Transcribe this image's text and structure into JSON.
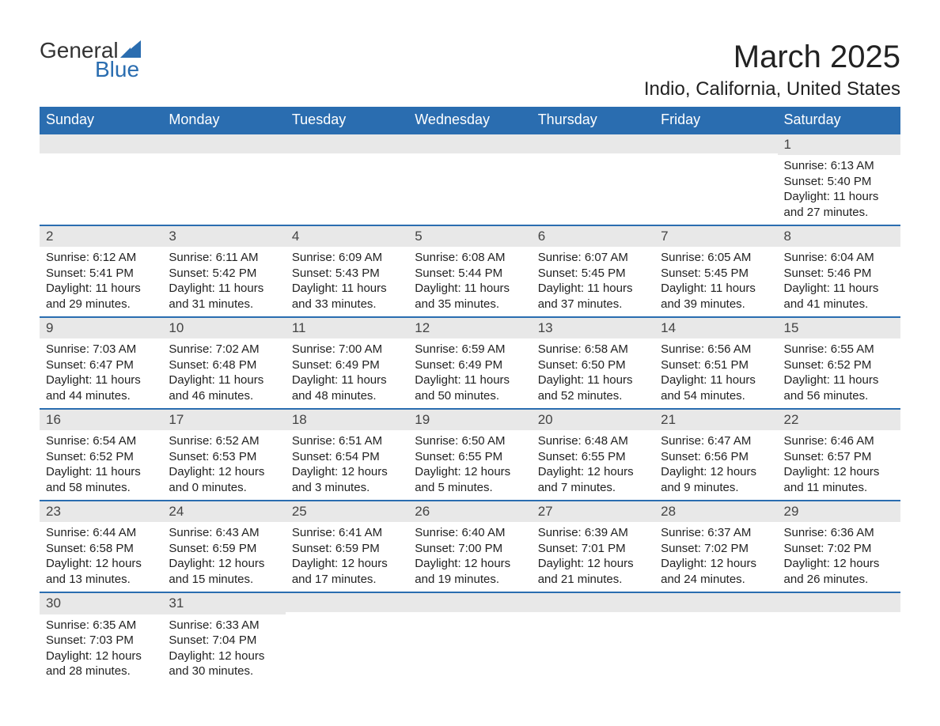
{
  "logo": {
    "word1": "General",
    "word2": "Blue",
    "sail_color": "#2a6db0",
    "text_dark": "#333333"
  },
  "title": "March 2025",
  "location": "Indio, California, United States",
  "colors": {
    "header_bg": "#2a6db0",
    "header_text": "#ffffff",
    "daynum_bg": "#e8e8e8",
    "row_divider": "#2a6db0",
    "body_text": "#222222",
    "page_bg": "#ffffff"
  },
  "day_headers": [
    "Sunday",
    "Monday",
    "Tuesday",
    "Wednesday",
    "Thursday",
    "Friday",
    "Saturday"
  ],
  "weeks": [
    [
      null,
      null,
      null,
      null,
      null,
      null,
      {
        "n": "1",
        "sr": "Sunrise: 6:13 AM",
        "ss": "Sunset: 5:40 PM",
        "dl1": "Daylight: 11 hours",
        "dl2": "and 27 minutes."
      }
    ],
    [
      {
        "n": "2",
        "sr": "Sunrise: 6:12 AM",
        "ss": "Sunset: 5:41 PM",
        "dl1": "Daylight: 11 hours",
        "dl2": "and 29 minutes."
      },
      {
        "n": "3",
        "sr": "Sunrise: 6:11 AM",
        "ss": "Sunset: 5:42 PM",
        "dl1": "Daylight: 11 hours",
        "dl2": "and 31 minutes."
      },
      {
        "n": "4",
        "sr": "Sunrise: 6:09 AM",
        "ss": "Sunset: 5:43 PM",
        "dl1": "Daylight: 11 hours",
        "dl2": "and 33 minutes."
      },
      {
        "n": "5",
        "sr": "Sunrise: 6:08 AM",
        "ss": "Sunset: 5:44 PM",
        "dl1": "Daylight: 11 hours",
        "dl2": "and 35 minutes."
      },
      {
        "n": "6",
        "sr": "Sunrise: 6:07 AM",
        "ss": "Sunset: 5:45 PM",
        "dl1": "Daylight: 11 hours",
        "dl2": "and 37 minutes."
      },
      {
        "n": "7",
        "sr": "Sunrise: 6:05 AM",
        "ss": "Sunset: 5:45 PM",
        "dl1": "Daylight: 11 hours",
        "dl2": "and 39 minutes."
      },
      {
        "n": "8",
        "sr": "Sunrise: 6:04 AM",
        "ss": "Sunset: 5:46 PM",
        "dl1": "Daylight: 11 hours",
        "dl2": "and 41 minutes."
      }
    ],
    [
      {
        "n": "9",
        "sr": "Sunrise: 7:03 AM",
        "ss": "Sunset: 6:47 PM",
        "dl1": "Daylight: 11 hours",
        "dl2": "and 44 minutes."
      },
      {
        "n": "10",
        "sr": "Sunrise: 7:02 AM",
        "ss": "Sunset: 6:48 PM",
        "dl1": "Daylight: 11 hours",
        "dl2": "and 46 minutes."
      },
      {
        "n": "11",
        "sr": "Sunrise: 7:00 AM",
        "ss": "Sunset: 6:49 PM",
        "dl1": "Daylight: 11 hours",
        "dl2": "and 48 minutes."
      },
      {
        "n": "12",
        "sr": "Sunrise: 6:59 AM",
        "ss": "Sunset: 6:49 PM",
        "dl1": "Daylight: 11 hours",
        "dl2": "and 50 minutes."
      },
      {
        "n": "13",
        "sr": "Sunrise: 6:58 AM",
        "ss": "Sunset: 6:50 PM",
        "dl1": "Daylight: 11 hours",
        "dl2": "and 52 minutes."
      },
      {
        "n": "14",
        "sr": "Sunrise: 6:56 AM",
        "ss": "Sunset: 6:51 PM",
        "dl1": "Daylight: 11 hours",
        "dl2": "and 54 minutes."
      },
      {
        "n": "15",
        "sr": "Sunrise: 6:55 AM",
        "ss": "Sunset: 6:52 PM",
        "dl1": "Daylight: 11 hours",
        "dl2": "and 56 minutes."
      }
    ],
    [
      {
        "n": "16",
        "sr": "Sunrise: 6:54 AM",
        "ss": "Sunset: 6:52 PM",
        "dl1": "Daylight: 11 hours",
        "dl2": "and 58 minutes."
      },
      {
        "n": "17",
        "sr": "Sunrise: 6:52 AM",
        "ss": "Sunset: 6:53 PM",
        "dl1": "Daylight: 12 hours",
        "dl2": "and 0 minutes."
      },
      {
        "n": "18",
        "sr": "Sunrise: 6:51 AM",
        "ss": "Sunset: 6:54 PM",
        "dl1": "Daylight: 12 hours",
        "dl2": "and 3 minutes."
      },
      {
        "n": "19",
        "sr": "Sunrise: 6:50 AM",
        "ss": "Sunset: 6:55 PM",
        "dl1": "Daylight: 12 hours",
        "dl2": "and 5 minutes."
      },
      {
        "n": "20",
        "sr": "Sunrise: 6:48 AM",
        "ss": "Sunset: 6:55 PM",
        "dl1": "Daylight: 12 hours",
        "dl2": "and 7 minutes."
      },
      {
        "n": "21",
        "sr": "Sunrise: 6:47 AM",
        "ss": "Sunset: 6:56 PM",
        "dl1": "Daylight: 12 hours",
        "dl2": "and 9 minutes."
      },
      {
        "n": "22",
        "sr": "Sunrise: 6:46 AM",
        "ss": "Sunset: 6:57 PM",
        "dl1": "Daylight: 12 hours",
        "dl2": "and 11 minutes."
      }
    ],
    [
      {
        "n": "23",
        "sr": "Sunrise: 6:44 AM",
        "ss": "Sunset: 6:58 PM",
        "dl1": "Daylight: 12 hours",
        "dl2": "and 13 minutes."
      },
      {
        "n": "24",
        "sr": "Sunrise: 6:43 AM",
        "ss": "Sunset: 6:59 PM",
        "dl1": "Daylight: 12 hours",
        "dl2": "and 15 minutes."
      },
      {
        "n": "25",
        "sr": "Sunrise: 6:41 AM",
        "ss": "Sunset: 6:59 PM",
        "dl1": "Daylight: 12 hours",
        "dl2": "and 17 minutes."
      },
      {
        "n": "26",
        "sr": "Sunrise: 6:40 AM",
        "ss": "Sunset: 7:00 PM",
        "dl1": "Daylight: 12 hours",
        "dl2": "and 19 minutes."
      },
      {
        "n": "27",
        "sr": "Sunrise: 6:39 AM",
        "ss": "Sunset: 7:01 PM",
        "dl1": "Daylight: 12 hours",
        "dl2": "and 21 minutes."
      },
      {
        "n": "28",
        "sr": "Sunrise: 6:37 AM",
        "ss": "Sunset: 7:02 PM",
        "dl1": "Daylight: 12 hours",
        "dl2": "and 24 minutes."
      },
      {
        "n": "29",
        "sr": "Sunrise: 6:36 AM",
        "ss": "Sunset: 7:02 PM",
        "dl1": "Daylight: 12 hours",
        "dl2": "and 26 minutes."
      }
    ],
    [
      {
        "n": "30",
        "sr": "Sunrise: 6:35 AM",
        "ss": "Sunset: 7:03 PM",
        "dl1": "Daylight: 12 hours",
        "dl2": "and 28 minutes."
      },
      {
        "n": "31",
        "sr": "Sunrise: 6:33 AM",
        "ss": "Sunset: 7:04 PM",
        "dl1": "Daylight: 12 hours",
        "dl2": "and 30 minutes."
      },
      null,
      null,
      null,
      null,
      null
    ]
  ]
}
